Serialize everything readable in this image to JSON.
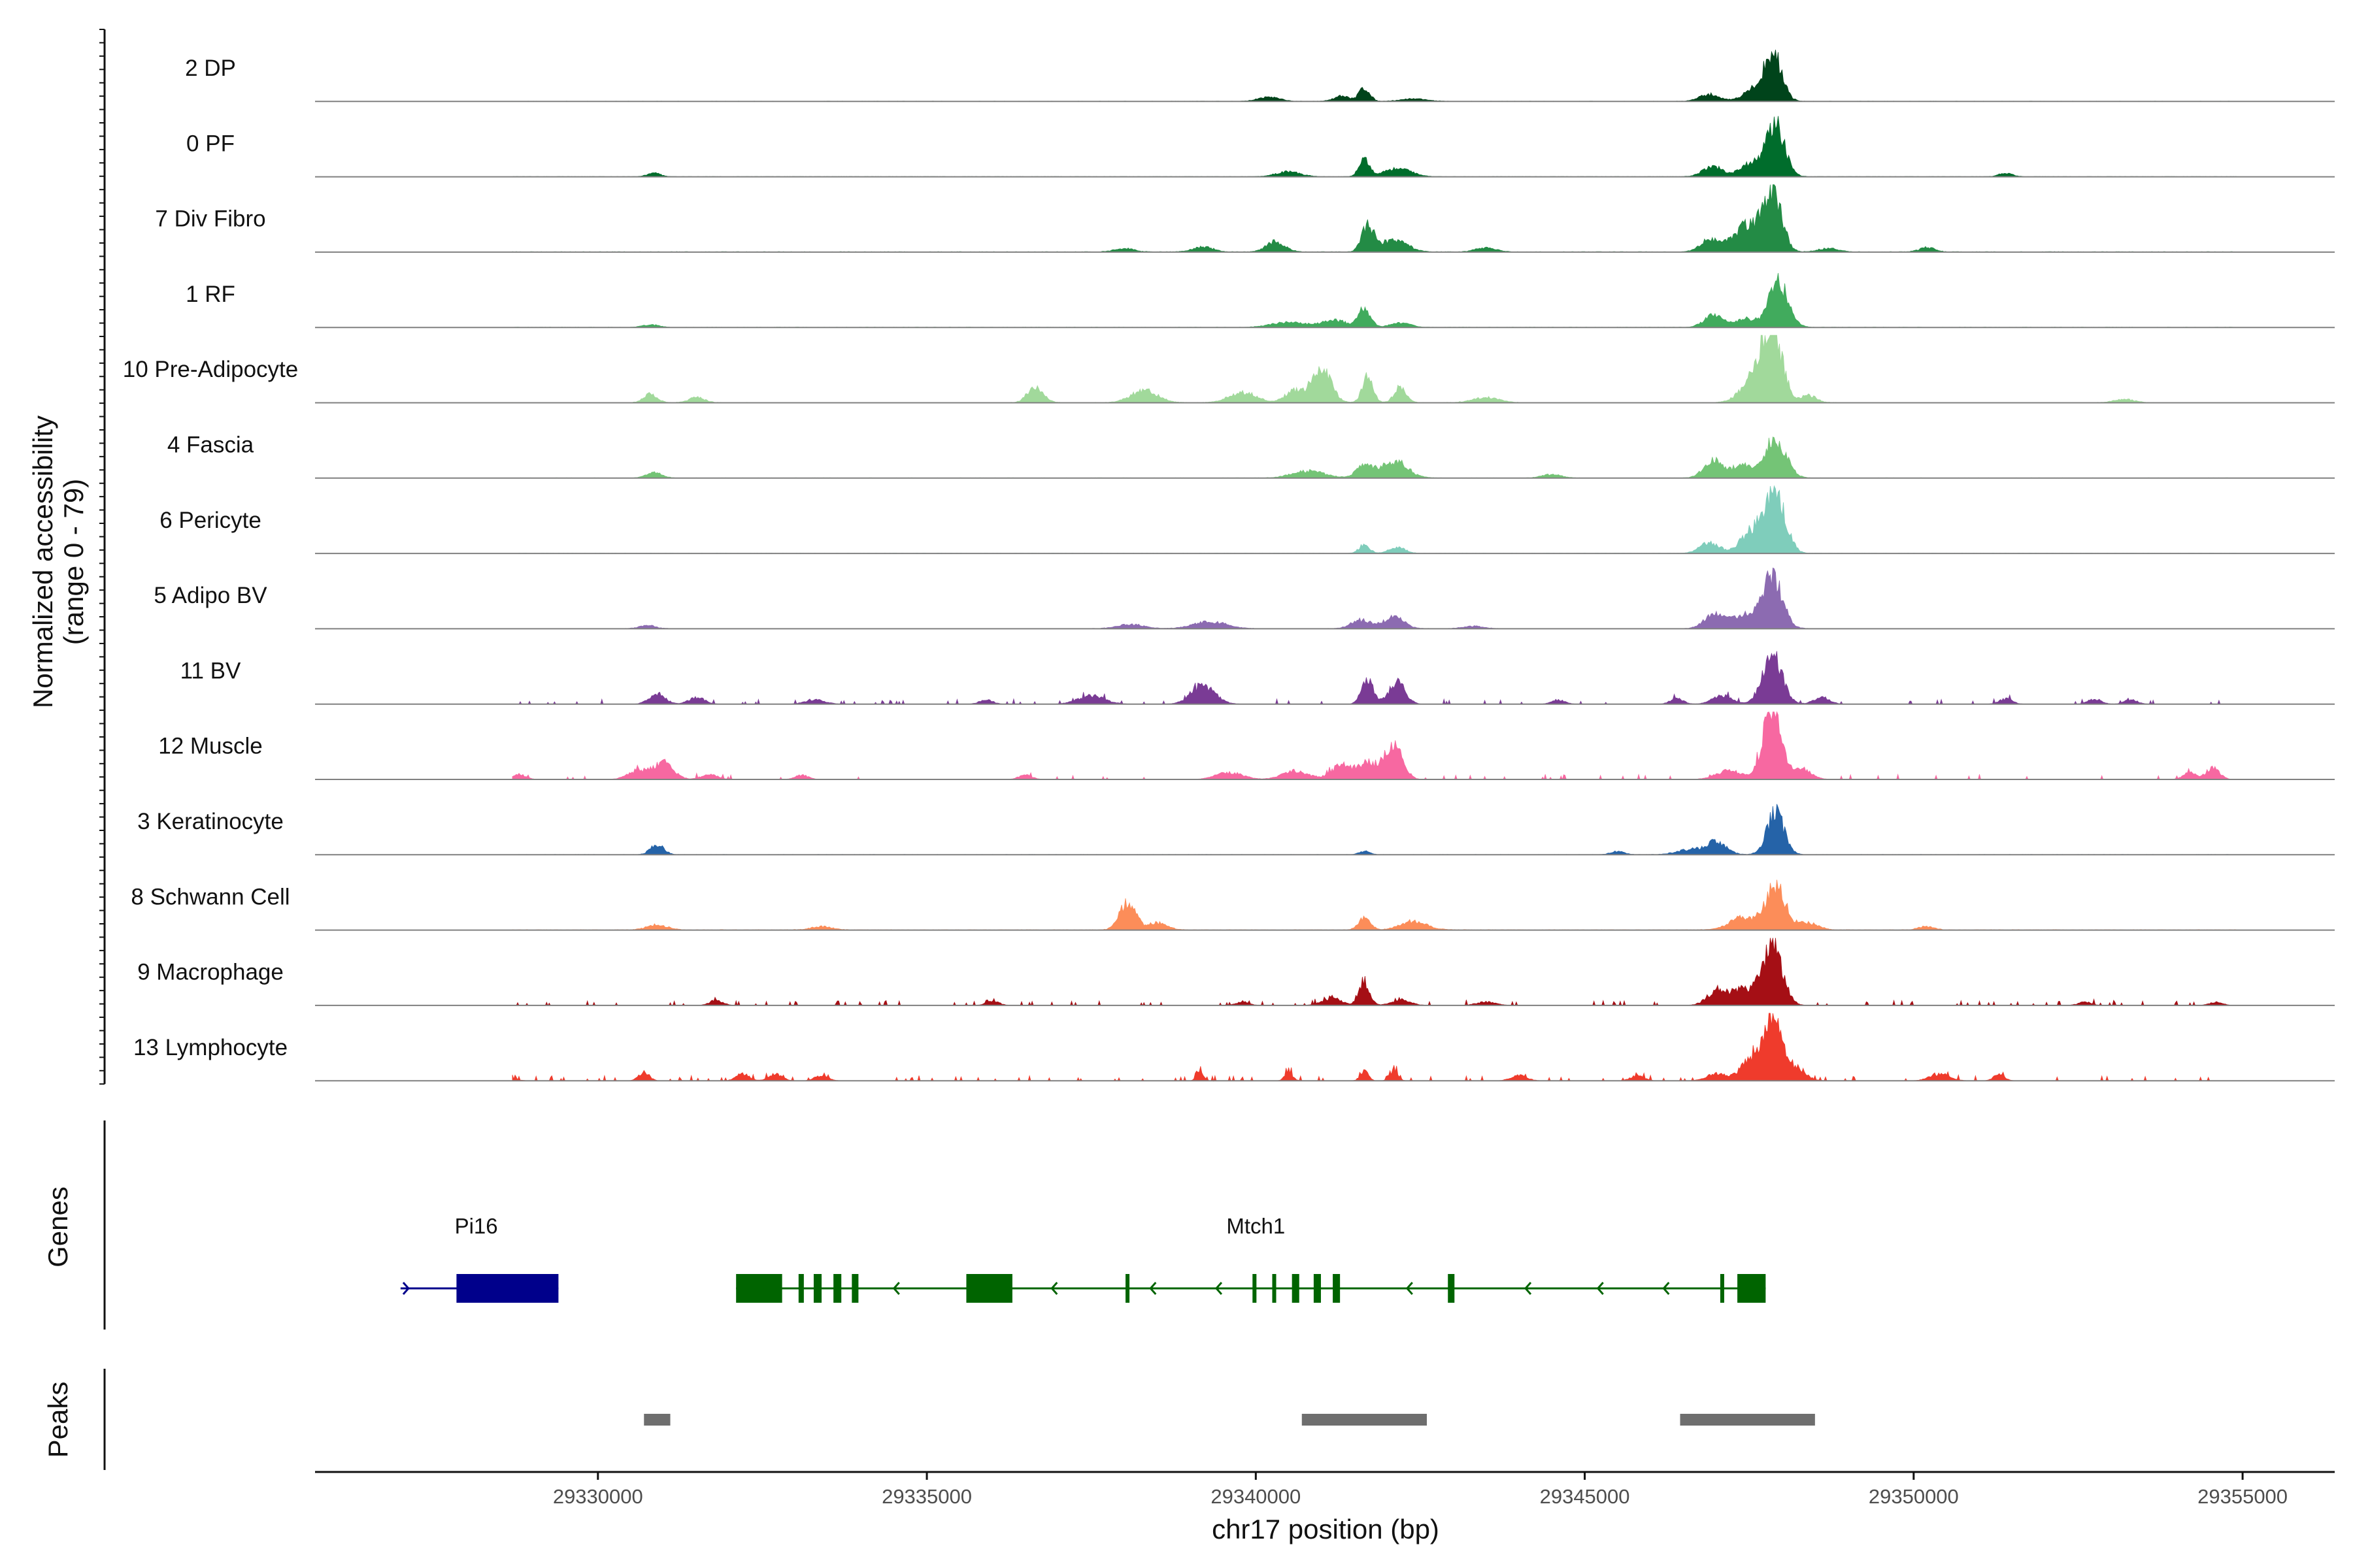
{
  "chart_data": {
    "type": "area",
    "title": "",
    "chromosome": "chr17",
    "xlabel": "chr17 position (bp)",
    "xlim": [
      29325700,
      29356400
    ],
    "x_ticks": [
      29330000,
      29335000,
      29340000,
      29345000,
      29350000,
      29355000
    ],
    "x_tick_labels": [
      "29330000",
      "29335000",
      "29340000",
      "29345000",
      "29350000",
      "29355000"
    ],
    "ylabel_line1": "Normalized accessibility",
    "ylabel_line2": "(range 0 - 79)",
    "ylim": [
      0,
      79
    ],
    "tracks": [
      {
        "name": "2 DP",
        "color": "#00441b",
        "noise": 0.4,
        "sparse": 0.0,
        "peaks": [
          [
            29347870,
            52,
            130
          ],
          [
            29347600,
            14,
            180
          ],
          [
            29346900,
            8,
            150
          ],
          [
            29341650,
            16,
            80
          ],
          [
            29341300,
            6,
            120
          ],
          [
            29340200,
            5,
            160
          ],
          [
            29342400,
            3,
            200
          ]
        ]
      },
      {
        "name": "0 PF",
        "color": "#006d2c",
        "noise": 0.4,
        "sparse": 0.0,
        "peaks": [
          [
            29347900,
            58,
            140
          ],
          [
            29347550,
            16,
            170
          ],
          [
            29346950,
            12,
            150
          ],
          [
            29341650,
            20,
            80
          ],
          [
            29342150,
            10,
            200
          ],
          [
            29340500,
            6,
            180
          ],
          [
            29330850,
            4,
            100
          ],
          [
            29351400,
            4,
            100
          ]
        ]
      },
      {
        "name": "7 Div Fibro",
        "color": "#238b45",
        "noise": 0.6,
        "sparse": 0.0,
        "peaks": [
          [
            29347850,
            72,
            140
          ],
          [
            29347450,
            30,
            200
          ],
          [
            29346900,
            14,
            150
          ],
          [
            29341700,
            30,
            90
          ],
          [
            29342100,
            14,
            200
          ],
          [
            29340300,
            12,
            140
          ],
          [
            29339200,
            6,
            150
          ],
          [
            29338000,
            4,
            150
          ],
          [
            29343500,
            5,
            150
          ],
          [
            29348700,
            4,
            150
          ],
          [
            29350200,
            5,
            120
          ]
        ]
      },
      {
        "name": "1 RF",
        "color": "#41ab5d",
        "noise": 0.4,
        "sparse": 0.0,
        "peaks": [
          [
            29347950,
            52,
            150
          ],
          [
            29346950,
            14,
            140
          ],
          [
            29347450,
            10,
            160
          ],
          [
            29341650,
            22,
            90
          ],
          [
            29341200,
            8,
            200
          ],
          [
            29342200,
            5,
            150
          ],
          [
            29340500,
            6,
            250
          ],
          [
            29330800,
            3,
            120
          ]
        ]
      },
      {
        "name": "10 Pre-Adipocyte",
        "color": "#a1d99b",
        "noise": 0.5,
        "sparse": 0.0,
        "peaks": [
          [
            29347850,
            80,
            150
          ],
          [
            29347600,
            30,
            200
          ],
          [
            29348400,
            8,
            120
          ],
          [
            29341000,
            42,
            140
          ],
          [
            29341700,
            30,
            80
          ],
          [
            29342200,
            18,
            90
          ],
          [
            29340600,
            14,
            150
          ],
          [
            29339800,
            12,
            200
          ],
          [
            29338300,
            14,
            200
          ],
          [
            29336650,
            18,
            120
          ],
          [
            29330800,
            10,
            100
          ],
          [
            29331500,
            6,
            120
          ],
          [
            29343500,
            6,
            200
          ],
          [
            29353200,
            4,
            150
          ]
        ]
      },
      {
        "name": "4 Fascia",
        "color": "#74c476",
        "noise": 0.4,
        "sparse": 0.0,
        "peaks": [
          [
            29347900,
            45,
            160
          ],
          [
            29347400,
            14,
            180
          ],
          [
            29346950,
            20,
            140
          ],
          [
            29342100,
            20,
            200
          ],
          [
            29341650,
            14,
            120
          ],
          [
            29340800,
            8,
            250
          ],
          [
            29330850,
            6,
            120
          ],
          [
            29344500,
            4,
            150
          ]
        ]
      },
      {
        "name": "6 Pericyte",
        "color": "#7fcdbb",
        "noise": 0.3,
        "sparse": 0.0,
        "peaks": [
          [
            29347900,
            70,
            150
          ],
          [
            29347550,
            26,
            170
          ],
          [
            29346900,
            12,
            150
          ],
          [
            29341650,
            10,
            80
          ],
          [
            29342150,
            7,
            120
          ]
        ]
      },
      {
        "name": "5 Adipo BV",
        "color": "#8c6bb1",
        "noise": 0.4,
        "sparse": 0.0,
        "peaks": [
          [
            29347850,
            62,
            150
          ],
          [
            29347400,
            16,
            180
          ],
          [
            29346950,
            16,
            140
          ],
          [
            29342100,
            14,
            150
          ],
          [
            29341600,
            10,
            150
          ],
          [
            29339300,
            8,
            250
          ],
          [
            29338100,
            5,
            200
          ],
          [
            29330750,
            4,
            120
          ],
          [
            29343300,
            3,
            150
          ]
        ]
      },
      {
        "name": "11 BV",
        "color": "#7a3b95",
        "noise": 0.0,
        "sparse": 0.05,
        "peaks": [
          [
            29347850,
            56,
            150
          ],
          [
            29348600,
            8,
            120
          ],
          [
            29347100,
            10,
            150
          ],
          [
            29341700,
            28,
            90
          ],
          [
            29342150,
            26,
            120
          ],
          [
            29339200,
            22,
            180
          ],
          [
            29337500,
            10,
            200
          ],
          [
            29330900,
            12,
            120
          ],
          [
            29331500,
            8,
            120
          ],
          [
            29346400,
            6,
            100
          ],
          [
            29344600,
            5,
            100
          ],
          [
            29351400,
            6,
            100
          ],
          [
            29352750,
            6,
            100
          ],
          [
            29353300,
            5,
            100
          ],
          [
            29335900,
            5,
            100
          ],
          [
            29333300,
            5,
            150
          ],
          [
            29327700,
            5,
            100
          ]
        ]
      },
      {
        "name": "12 Muscle",
        "color": "#f768a1",
        "noise": 0.0,
        "sparse": 0.05,
        "peaks": [
          [
            29347850,
            80,
            140
          ],
          [
            29348300,
            12,
            150
          ],
          [
            29347200,
            10,
            200
          ],
          [
            29342100,
            42,
            130
          ],
          [
            29341700,
            20,
            150
          ],
          [
            29341300,
            16,
            150
          ],
          [
            29340600,
            10,
            200
          ],
          [
            29339600,
            8,
            200
          ],
          [
            29331000,
            20,
            150
          ],
          [
            29330600,
            10,
            150
          ],
          [
            29331700,
            6,
            120
          ],
          [
            29354550,
            14,
            100
          ],
          [
            29354200,
            8,
            100
          ],
          [
            29328800,
            6,
            100
          ],
          [
            29333100,
            5,
            100
          ],
          [
            29336500,
            5,
            100
          ]
        ]
      },
      {
        "name": "3 Keratinocyte",
        "color": "#2563a8",
        "noise": 0.4,
        "sparse": 0.0,
        "peaks": [
          [
            29347900,
            48,
            130
          ],
          [
            29347000,
            14,
            150
          ],
          [
            29346600,
            6,
            200
          ],
          [
            29330900,
            12,
            100
          ],
          [
            29341650,
            4,
            80
          ],
          [
            29345500,
            4,
            100
          ]
        ]
      },
      {
        "name": "8 Schwann Cell",
        "color": "#fc8d59",
        "noise": 0.6,
        "sparse": 0.0,
        "peaks": [
          [
            29347900,
            52,
            150
          ],
          [
            29347400,
            14,
            200
          ],
          [
            29348400,
            8,
            150
          ],
          [
            29338050,
            32,
            120
          ],
          [
            29338500,
            8,
            150
          ],
          [
            29341650,
            14,
            90
          ],
          [
            29342400,
            10,
            200
          ],
          [
            29330900,
            6,
            150
          ],
          [
            29327800,
            5,
            150
          ],
          [
            29333400,
            4,
            150
          ],
          [
            29350200,
            4,
            120
          ]
        ]
      },
      {
        "name": "9 Macrophage",
        "color": "#a50f15",
        "noise": 0.0,
        "sparse": 0.08,
        "peaks": [
          [
            29347850,
            70,
            150
          ],
          [
            29347400,
            18,
            200
          ],
          [
            29347000,
            14,
            150
          ],
          [
            29341650,
            28,
            80
          ],
          [
            29341150,
            8,
            150
          ],
          [
            29342200,
            6,
            150
          ],
          [
            29327500,
            6,
            150
          ],
          [
            29328300,
            6,
            150
          ],
          [
            29331800,
            6,
            100
          ],
          [
            29336000,
            5,
            100
          ],
          [
            29339800,
            4,
            100
          ],
          [
            29343500,
            4,
            150
          ],
          [
            29352600,
            4,
            100
          ],
          [
            29354600,
            4,
            100
          ]
        ]
      },
      {
        "name": "13 Lymphocyte",
        "color": "#ef3b2c",
        "noise": 0.0,
        "sparse": 0.08,
        "peaks": [
          [
            29347850,
            79,
            140
          ],
          [
            29347500,
            22,
            150
          ],
          [
            29348200,
            14,
            150
          ],
          [
            29347000,
            8,
            150
          ],
          [
            29341650,
            12,
            60
          ],
          [
            29342100,
            12,
            60
          ],
          [
            29340500,
            10,
            60
          ],
          [
            29339150,
            12,
            50
          ],
          [
            29327600,
            10,
            100
          ],
          [
            29328500,
            8,
            150
          ],
          [
            29330700,
            10,
            80
          ],
          [
            29332200,
            8,
            100
          ],
          [
            29332700,
            8,
            100
          ],
          [
            29333400,
            6,
            100
          ],
          [
            29344000,
            6,
            120
          ],
          [
            29345800,
            6,
            100
          ],
          [
            29350400,
            8,
            150
          ],
          [
            29351300,
            8,
            80
          ]
        ]
      }
    ],
    "genes_label": "Genes",
    "genes": [
      {
        "name": "Pi16",
        "strand": "+",
        "color": "#00008b",
        "start": 29327000,
        "end": 29329400,
        "label_pos": 29328150,
        "exons": [
          [
            29327850,
            29329400
          ]
        ]
      },
      {
        "name": "Mtch1",
        "strand": "-",
        "color": "#006400",
        "start": 29332100,
        "end": 29347750,
        "label_pos": 29340000,
        "exons": [
          [
            29332100,
            29332800
          ],
          [
            29333050,
            29333130
          ],
          [
            29333280,
            29333400
          ],
          [
            29333580,
            29333700
          ],
          [
            29333860,
            29333960
          ],
          [
            29335600,
            29336300
          ],
          [
            29338020,
            29338080
          ],
          [
            29339950,
            29340010
          ],
          [
            29340250,
            29340310
          ],
          [
            29340550,
            29340660
          ],
          [
            29340880,
            29340990
          ],
          [
            29341170,
            29341280
          ],
          [
            29342920,
            29343020
          ],
          [
            29347060,
            29347120
          ],
          [
            29347320,
            29347750
          ]
        ],
        "arrows": [
          29332500,
          29334500,
          29336900,
          29338400,
          29339400,
          29342300,
          29344100,
          29345200,
          29346200
        ]
      }
    ],
    "peaks_label": "Peaks",
    "peak_regions": [
      [
        29330700,
        29331100
      ],
      [
        29340700,
        29342600
      ],
      [
        29346450,
        29348500
      ]
    ]
  }
}
